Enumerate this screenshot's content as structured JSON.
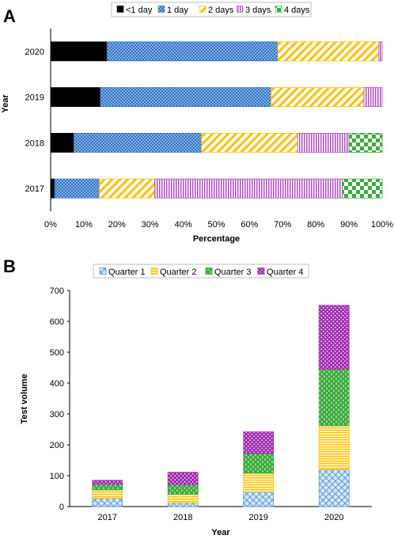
{
  "figure": {
    "panel_a_letter": "A",
    "panel_b_letter": "B"
  },
  "chart_data": [
    {
      "type": "bar",
      "orientation": "horizontal",
      "stacked": "percent",
      "categories": [
        "2020",
        "2019",
        "2018",
        "2017"
      ],
      "xlabel": "Percentage",
      "ylabel": "Year",
      "xlim": [
        0,
        100
      ],
      "x_ticks": [
        "0%",
        "10%",
        "20%",
        "30%",
        "40%",
        "50%",
        "60%",
        "70%",
        "80%",
        "90%",
        "100%"
      ],
      "grid": false,
      "legend_position": "top",
      "series": [
        {
          "name": "<1 day",
          "color": "#000000",
          "pattern": "solid",
          "values": [
            17,
            15,
            7,
            1.2
          ]
        },
        {
          "name": "1 day",
          "color": "#2e75c8",
          "pattern": "dots",
          "values": [
            51.5,
            51.5,
            38.5,
            13.5
          ]
        },
        {
          "name": "2 days",
          "color": "#ffc000",
          "pattern": "diagonal",
          "values": [
            30.5,
            28,
            29,
            16.7
          ]
        },
        {
          "name": "3 days",
          "color": "#b050c0",
          "pattern": "vertical-lines",
          "values": [
            1,
            5.5,
            15.5,
            56.6
          ]
        },
        {
          "name": "4 days",
          "color": "#3cab3c",
          "pattern": "checker",
          "values": [
            0,
            0,
            10,
            12
          ]
        }
      ]
    },
    {
      "type": "bar",
      "stacked": true,
      "categories": [
        "2017",
        "2018",
        "2019",
        "2020"
      ],
      "xlabel": "Year",
      "ylabel": "Test volume",
      "ylim": [
        0,
        700
      ],
      "y_ticks": [
        "0",
        "100",
        "200",
        "300",
        "400",
        "500",
        "600",
        "700"
      ],
      "grid": false,
      "legend_position": "top",
      "series": [
        {
          "name": "Quarter 1",
          "color": "#5b9bd5",
          "pattern": "crosshatch",
          "values": [
            27,
            12,
            48,
            120
          ]
        },
        {
          "name": "Quarter 2",
          "color": "#ffc000",
          "pattern": "horizontal-lines",
          "values": [
            27,
            28,
            60,
            142
          ]
        },
        {
          "name": "Quarter 3",
          "color": "#3cab3c",
          "pattern": "dashes",
          "values": [
            18,
            31,
            64,
            183
          ]
        },
        {
          "name": "Quarter 4",
          "color": "#a030b0",
          "pattern": "dots",
          "values": [
            13,
            40,
            70,
            207
          ]
        }
      ]
    }
  ]
}
